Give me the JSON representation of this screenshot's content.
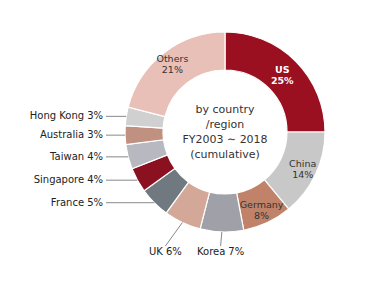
{
  "chart_data": {
    "type": "donut",
    "categories": [
      "US",
      "China",
      "Germany",
      "Korea",
      "UK",
      "France",
      "Singapore",
      "Taiwan",
      "Australia",
      "Hong Kong",
      "Others"
    ],
    "values": [
      25,
      14,
      8,
      7,
      6,
      5,
      4,
      4,
      3,
      3,
      21
    ],
    "value_labels": [
      "25%",
      "14%",
      "8%",
      "7%",
      "6%",
      "5%",
      "4%",
      "4%",
      "3%",
      "3%",
      "21%"
    ],
    "colors": [
      "#9B1020",
      "#C8C8C8",
      "#C0836A",
      "#A0A0A8",
      "#D4A898",
      "#707880",
      "#8B1020",
      "#B8B8C0",
      "#C09080",
      "#D0D0D0",
      "#E8C0B8"
    ],
    "data_labels": true,
    "annotations": [
      "by country\n/region\nFY2003 ∼ 2018\n(cumulative)"
    ]
  }
}
